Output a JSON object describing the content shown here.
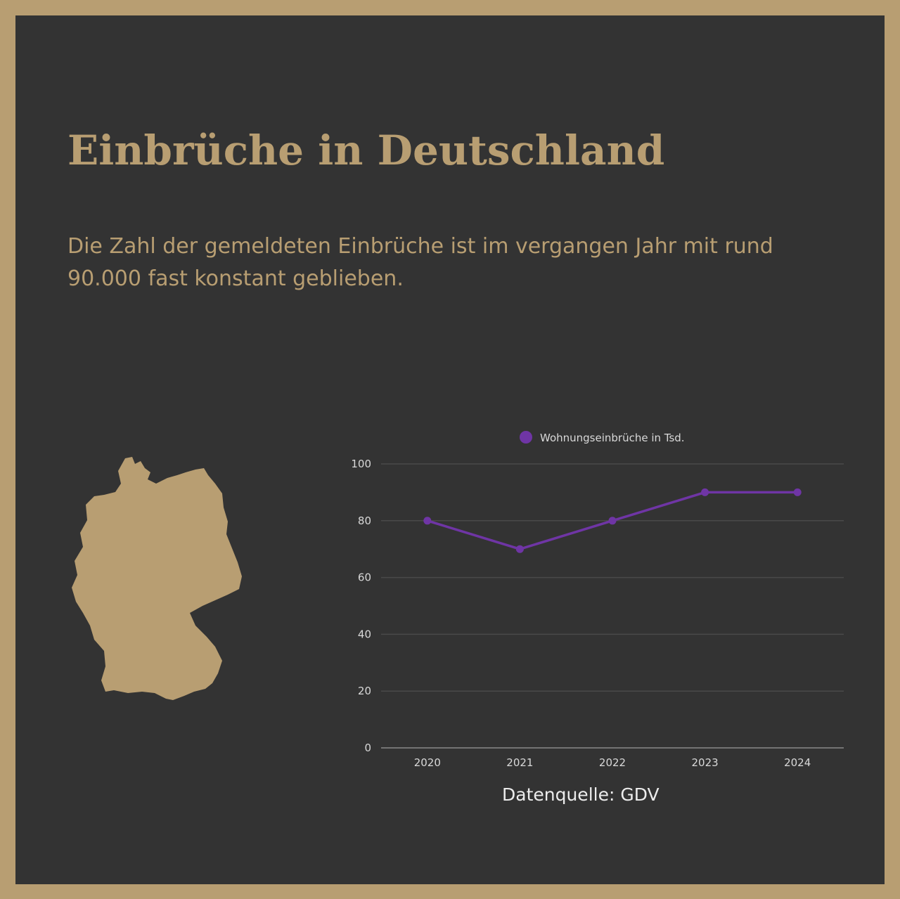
{
  "title": "Einbrüche in Deutschland",
  "subtitle": "Die Zahl der gemeldeten Einbrüche ist im vergangen Jahr mit rund 90.000 fast konstant geblieben.",
  "source": "Datenquelle: GDV",
  "colors": {
    "background": "#333333",
    "frame": "#b89e72",
    "accent_gold": "#b89e72",
    "series": "#6f35a5",
    "gridline": "#4a4a4a",
    "axis_text": "#d9d9d9"
  },
  "map_icon": "germany-map-silhouette",
  "chart_data": {
    "type": "line",
    "categories": [
      "2020",
      "2021",
      "2022",
      "2023",
      "2024"
    ],
    "series": [
      {
        "name": "Wohnungseinbrüche in Tsd.",
        "values": [
          80,
          70,
          80,
          90,
          90
        ]
      }
    ],
    "ylim": [
      0,
      100
    ],
    "yticks": [
      "0",
      "20",
      "40",
      "60",
      "80",
      "100"
    ],
    "legend": "top-center",
    "grid": true
  }
}
